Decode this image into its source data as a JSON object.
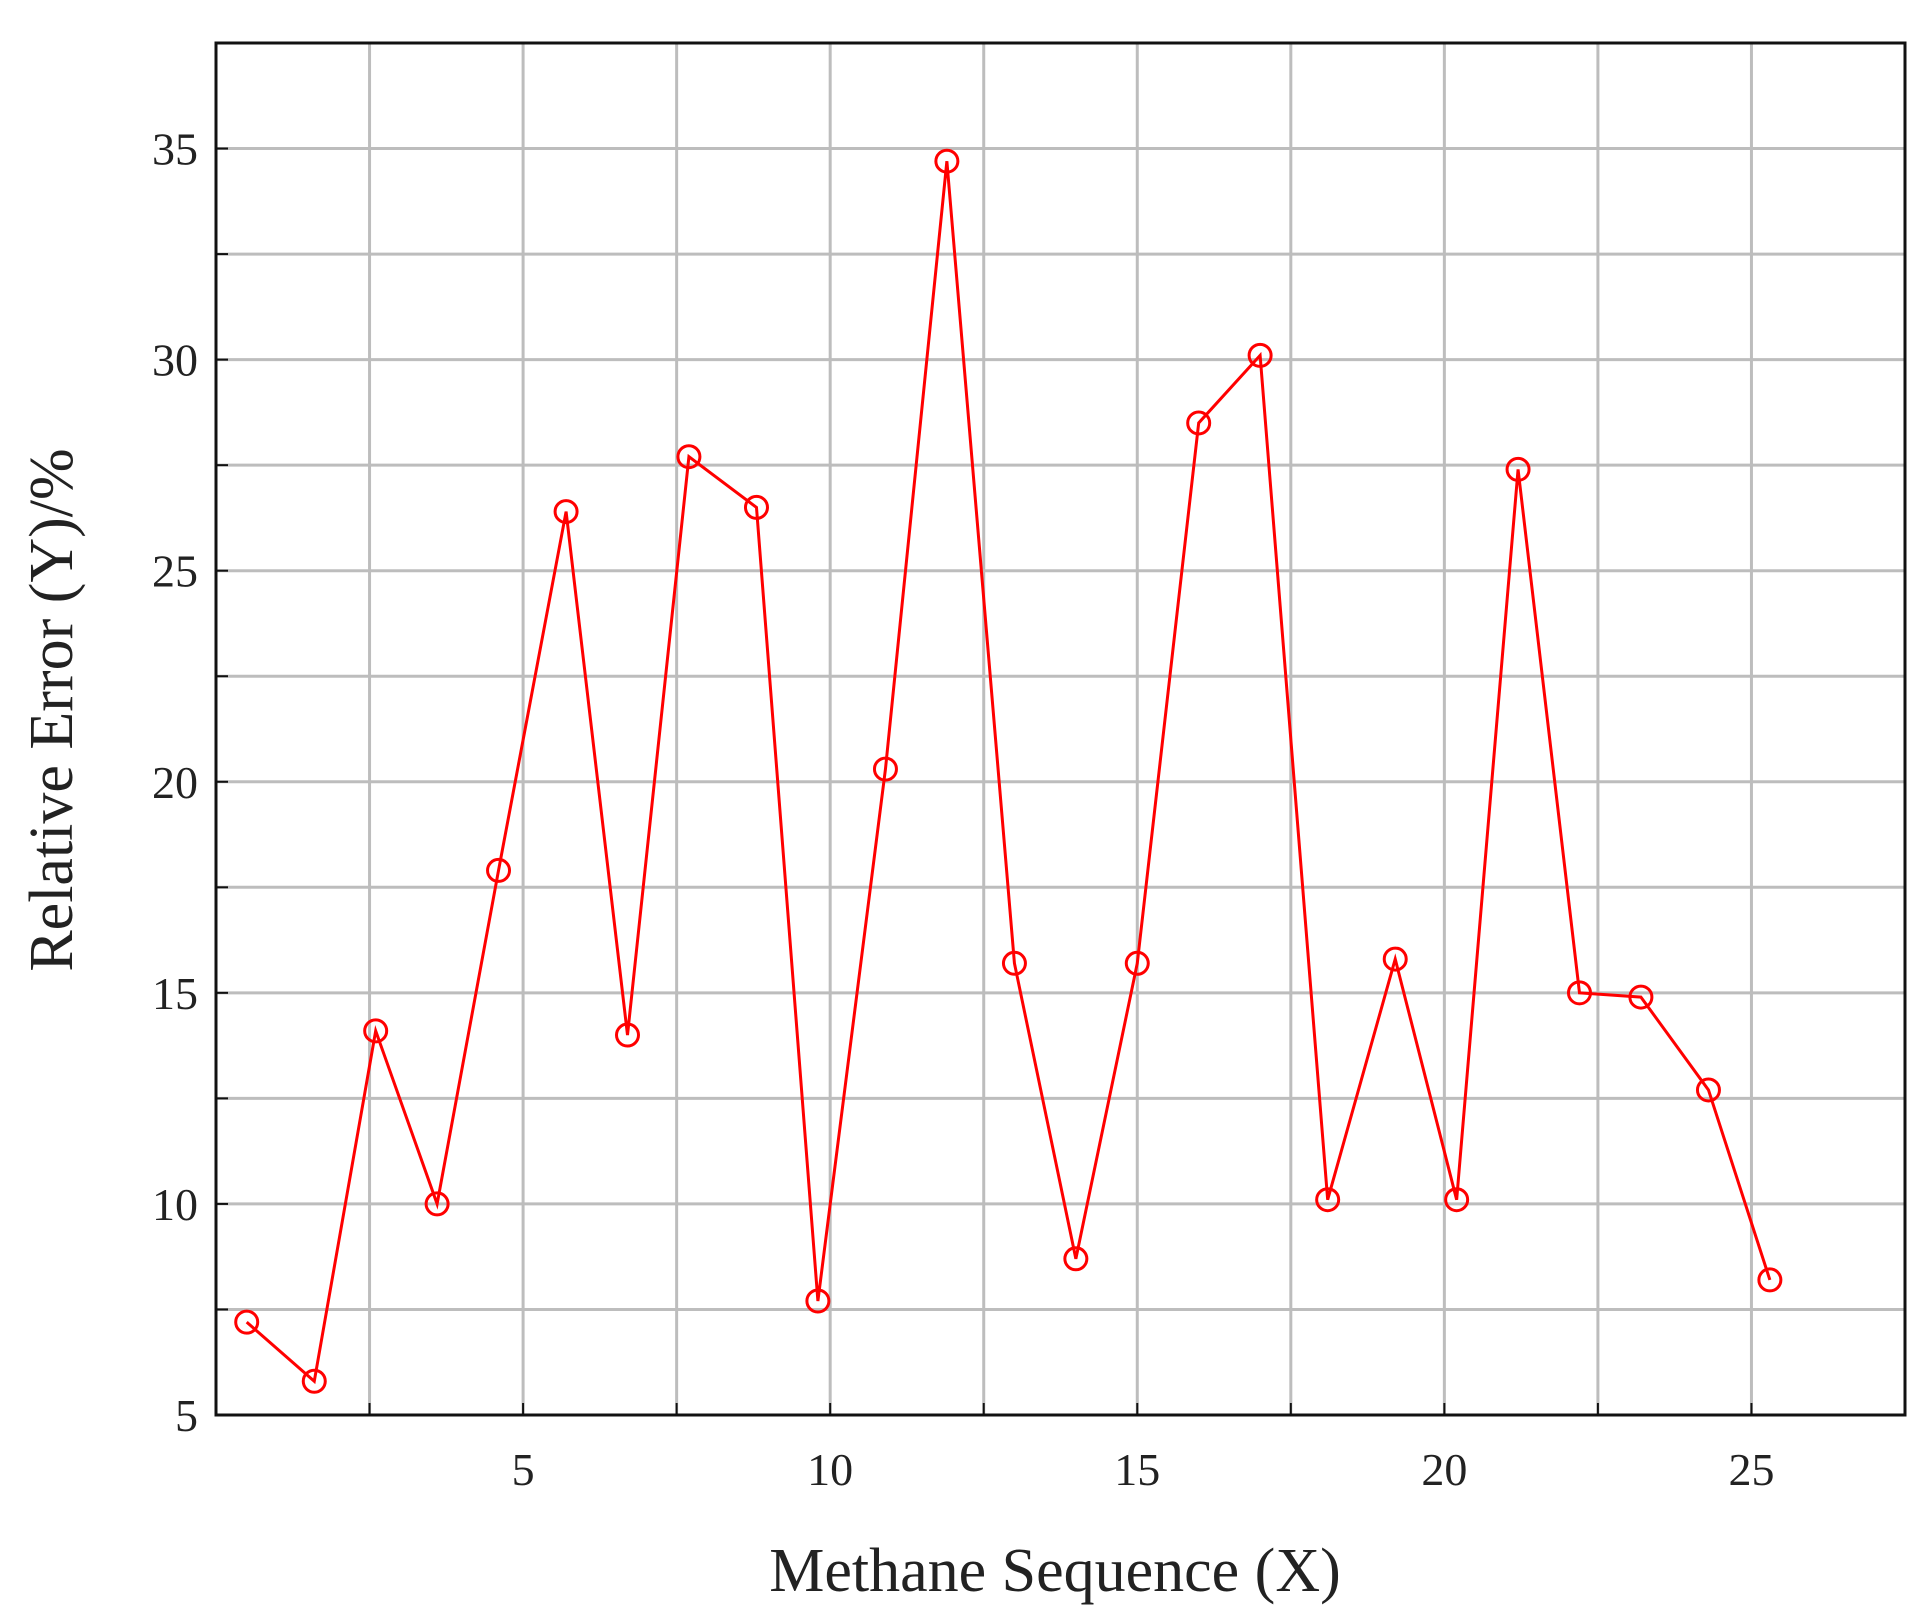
{
  "chart_data": {
    "type": "line",
    "title": "",
    "xlabel": "Methane Sequence (X)",
    "ylabel": "Relative Error (Y)/%",
    "xlim": [
      0,
      27.5
    ],
    "ylim": [
      5,
      37.5
    ],
    "x_ticks": [
      5,
      10,
      15,
      20,
      25
    ],
    "x_tick_labels": [
      "5",
      "10",
      "15",
      "20",
      "25"
    ],
    "y_ticks": [
      5,
      10,
      15,
      20,
      25,
      30,
      35
    ],
    "y_tick_labels": [
      "5",
      "10",
      "15",
      "20",
      "25",
      "30",
      "35"
    ],
    "x_grid": [
      2.5,
      5,
      7.5,
      10,
      12.5,
      15,
      17.5,
      20,
      22.5,
      25
    ],
    "y_grid": [
      7.5,
      10,
      12.5,
      15,
      17.5,
      20,
      22.5,
      25,
      27.5,
      30,
      32.5,
      35
    ],
    "grid": true,
    "legend": "none",
    "series": [
      {
        "color": "#ff0000",
        "marker": "circle",
        "x": [
          0.5,
          1.6,
          2.6,
          3.6,
          4.6,
          5.7,
          6.7,
          7.7,
          8.8,
          9.8,
          10.9,
          11.9,
          13.0,
          14.0,
          15.0,
          16.0,
          17.0,
          18.1,
          19.2,
          20.2,
          21.2,
          22.2,
          23.2,
          24.3,
          25.3
        ],
        "y": [
          7.2,
          5.8,
          14.1,
          10.0,
          17.9,
          26.4,
          14.0,
          27.7,
          26.5,
          7.7,
          20.3,
          34.7,
          15.7,
          8.7,
          15.7,
          28.5,
          30.1,
          10.1,
          15.8,
          10.1,
          27.4,
          15.0,
          14.9,
          12.7,
          8.2
        ]
      }
    ]
  }
}
